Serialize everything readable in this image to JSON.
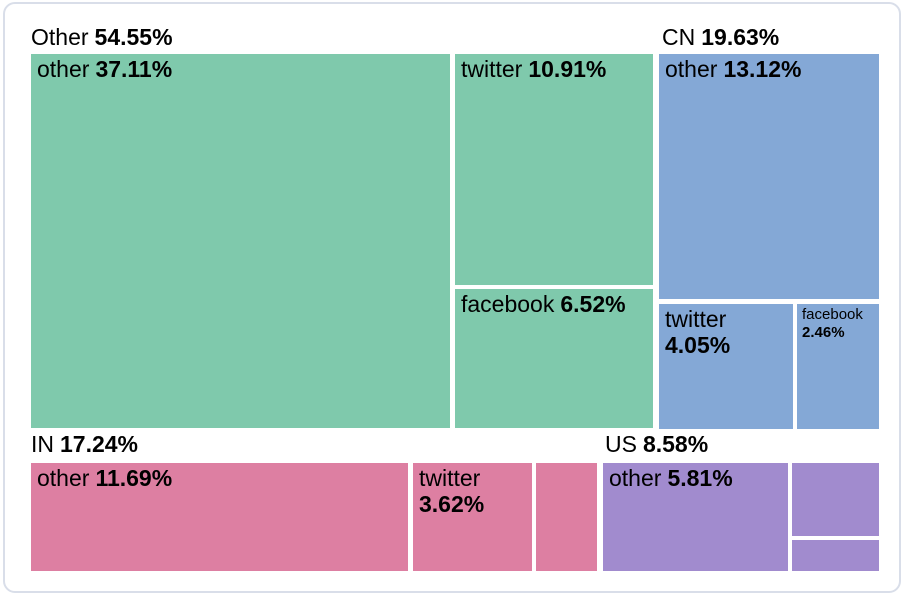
{
  "page": {
    "background": "#ffffff",
    "card_border_color": "#d9dee9"
  },
  "chart_data": {
    "type": "treemap",
    "title": "",
    "legend_position": "none",
    "unit": "percent",
    "groups": [
      {
        "label": "Other",
        "percent": "54.55%",
        "value": 54.55,
        "color": "#7fc9ac",
        "children": [
          {
            "label": "other",
            "percent": "37.11%",
            "value": 37.11
          },
          {
            "label": "twitter",
            "percent": "10.91%",
            "value": 10.91
          },
          {
            "label": "facebook",
            "percent": "6.52%",
            "value": 6.52
          }
        ]
      },
      {
        "label": "CN",
        "percent": "19.63%",
        "value": 19.63,
        "color": "#84a8d6",
        "children": [
          {
            "label": "other",
            "percent": "13.12%",
            "value": 13.12
          },
          {
            "label": "twitter",
            "percent": "4.05%",
            "value": 4.05
          },
          {
            "label": "facebook",
            "percent": "2.46%",
            "value": 2.46
          }
        ]
      },
      {
        "label": "IN",
        "percent": "17.24%",
        "value": 17.24,
        "color": "#dd7fa2",
        "children": [
          {
            "label": "other",
            "percent": "11.69%",
            "value": 11.69
          },
          {
            "label": "twitter",
            "percent": "3.62%",
            "value": 3.62
          },
          {
            "label": "",
            "percent": ""
          }
        ]
      },
      {
        "label": "US",
        "percent": "8.58%",
        "value": 8.58,
        "color": "#a18bce",
        "children": [
          {
            "label": "other",
            "percent": "5.81%",
            "value": 5.81
          },
          {
            "label": "",
            "percent": ""
          },
          {
            "label": "",
            "percent": ""
          }
        ]
      }
    ]
  }
}
